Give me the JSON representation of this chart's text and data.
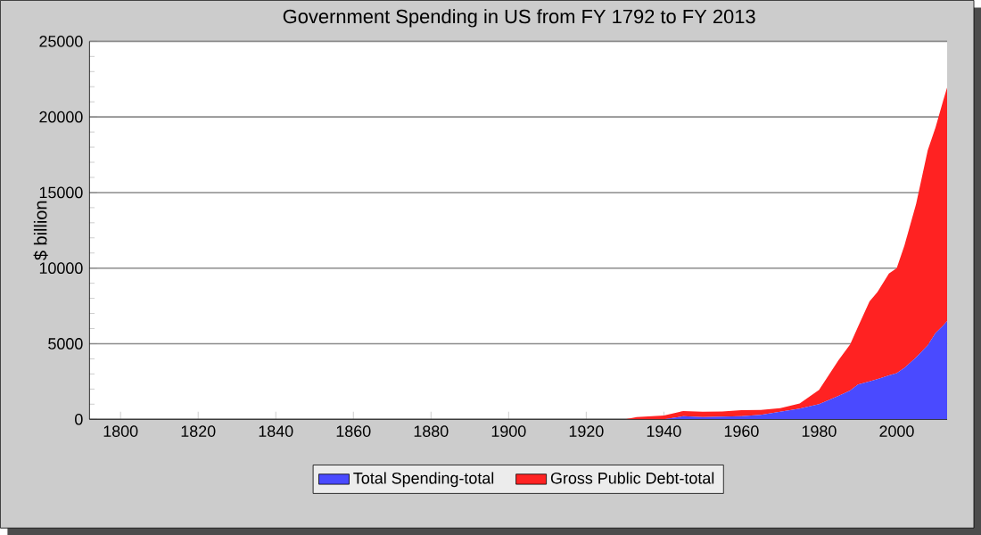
{
  "chart_data": {
    "type": "area",
    "stacked": true,
    "title": "Government Spending in US from FY 1792 to FY 2013",
    "ylabel": "$ billion",
    "x": [
      1792,
      1900,
      1930,
      1933,
      1940,
      1945,
      1950,
      1955,
      1960,
      1965,
      1970,
      1975,
      1980,
      1985,
      1988,
      1990,
      1993,
      1995,
      1998,
      2000,
      2002,
      2005,
      2008,
      2010,
      2012,
      2013
    ],
    "series": [
      {
        "name": "Total Spending-total",
        "color": "#4a4aff",
        "values": [
          0,
          0,
          0,
          0,
          0,
          200,
          150,
          170,
          200,
          300,
          500,
          700,
          1000,
          1550,
          1900,
          2300,
          2500,
          2650,
          2900,
          3050,
          3400,
          4100,
          4900,
          5700,
          6200,
          6500
        ]
      },
      {
        "name": "Gross Public Debt-total",
        "color": "#ff2222",
        "values": [
          0,
          0,
          0,
          150,
          250,
          350,
          350,
          350,
          400,
          320,
          240,
          350,
          950,
          2350,
          3050,
          3800,
          5300,
          5750,
          6750,
          6950,
          8100,
          10150,
          12900,
          13600,
          14900,
          15450
        ]
      }
    ],
    "xlim": [
      1792,
      2013
    ],
    "ylim": [
      0,
      25000
    ],
    "xticks": [
      1800,
      1820,
      1840,
      1860,
      1880,
      1900,
      1920,
      1940,
      1960,
      1980,
      2000
    ],
    "yticks": [
      0,
      5000,
      10000,
      15000,
      20000,
      25000
    ],
    "grid": "y",
    "legend": "bottom"
  }
}
